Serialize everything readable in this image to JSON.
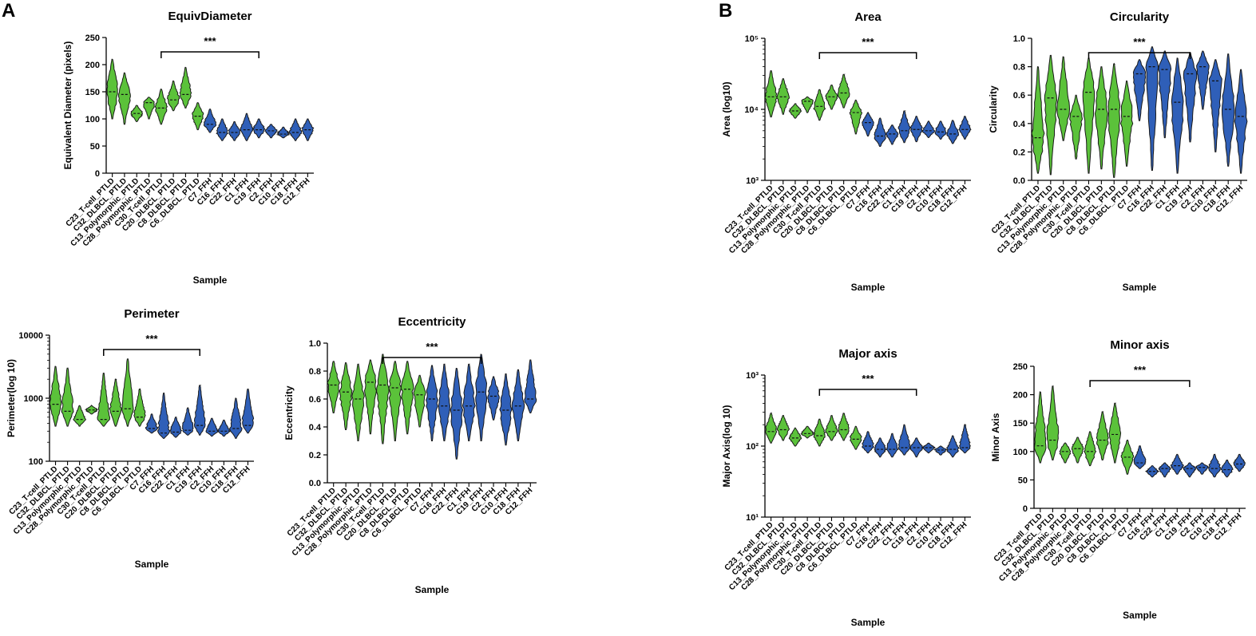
{
  "panels": {
    "a": "A",
    "b": "B"
  },
  "colors": {
    "green": "#5bc23a",
    "blue": "#2f5fb8",
    "outline": "#1a1a1a"
  },
  "samples": [
    "C23_T-cell_PTLD",
    "C32_DLBCL_PTLD",
    "C13_Polymorphic_PTLD",
    "C28_Polymorphic_PTLD",
    "C30_T-cell_PTLD",
    "C20_DLBCL_PTLD",
    "C8_DLBCL_PTLD",
    "C6_DLBCL_PTLD",
    "C7_FFH",
    "C16_FFH",
    "C22_FFH",
    "C1_FFH",
    "C19_FFH",
    "C2_FFH",
    "C10_FFH",
    "C18_FFH",
    "C12_FFH"
  ],
  "chart_data": [
    {
      "id": "equiv",
      "type": "violin",
      "title": "EquivDiameter",
      "ylabel": "Equivalent Diameter (pixels)",
      "xlabel": "Sample",
      "scale": "linear",
      "ylim": [
        0,
        250
      ],
      "yticks": [
        0,
        50,
        100,
        150,
        200,
        250
      ],
      "ytick_labels": [
        "0",
        "50",
        "100",
        "150",
        "200",
        "250"
      ],
      "significance": "***",
      "sig_span": [
        4,
        12
      ],
      "series": [
        {
          "group": "PTLD",
          "color": "green",
          "lo": [
            100,
            90,
            95,
            100,
            90,
            115,
            120,
            80
          ],
          "hi": [
            210,
            185,
            125,
            140,
            155,
            170,
            195,
            130
          ],
          "mid": [
            150,
            145,
            110,
            130,
            120,
            135,
            145,
            105
          ]
        },
        {
          "group": "FFH",
          "color": "blue",
          "lo": [
            75,
            60,
            60,
            60,
            65,
            65,
            65,
            60,
            60
          ],
          "hi": [
            118,
            100,
            95,
            110,
            100,
            90,
            85,
            100,
            100
          ],
          "mid": [
            90,
            75,
            75,
            80,
            80,
            78,
            72,
            75,
            80
          ]
        }
      ]
    },
    {
      "id": "perimeter",
      "type": "violin",
      "title": "Perimeter",
      "ylabel": "Perimeter(log 10)",
      "xlabel": "Sample",
      "scale": "log",
      "ylim": [
        100,
        10000
      ],
      "yticks": [
        100,
        1000,
        10000
      ],
      "ytick_labels": [
        "100",
        "1000",
        "10000"
      ],
      "significance": "***",
      "sig_span": [
        4,
        12
      ],
      "series": [
        {
          "group": "PTLD",
          "color": "green",
          "lo": [
            360,
            360,
            360,
            560,
            360,
            360,
            360,
            360
          ],
          "hi": [
            3200,
            3000,
            760,
            760,
            2500,
            2000,
            4200,
            1400
          ],
          "mid": [
            800,
            620,
            460,
            650,
            460,
            620,
            680,
            500
          ]
        },
        {
          "group": "FFH",
          "color": "blue",
          "lo": [
            280,
            230,
            240,
            260,
            260,
            250,
            250,
            230,
            280
          ],
          "hi": [
            560,
            1200,
            500,
            700,
            1600,
            480,
            450,
            1000,
            1400
          ],
          "mid": [
            330,
            280,
            290,
            310,
            370,
            300,
            300,
            330,
            370
          ]
        }
      ]
    },
    {
      "id": "eccentricity",
      "type": "violin",
      "title": "Eccentricity",
      "ylabel": "Eccentricity",
      "xlabel": "Sample",
      "scale": "linear",
      "ylim": [
        0,
        1
      ],
      "yticks": [
        0,
        0.2,
        0.4,
        0.6,
        0.8,
        1
      ],
      "ytick_labels": [
        "0.0",
        "0.2",
        "0.4",
        "0.6",
        "0.8",
        "1.0"
      ],
      "significance": "***",
      "sig_span": [
        4,
        12
      ],
      "series": [
        {
          "group": "PTLD",
          "color": "green",
          "lo": [
            0.5,
            0.38,
            0.3,
            0.35,
            0.28,
            0.3,
            0.35,
            0.4
          ],
          "hi": [
            0.87,
            0.86,
            0.85,
            0.88,
            0.92,
            0.87,
            0.87,
            0.77
          ],
          "mid": [
            0.7,
            0.65,
            0.6,
            0.72,
            0.7,
            0.68,
            0.67,
            0.63
          ]
        },
        {
          "group": "FFH",
          "color": "blue",
          "lo": [
            0.3,
            0.3,
            0.17,
            0.3,
            0.3,
            0.45,
            0.27,
            0.3,
            0.5
          ],
          "hi": [
            0.84,
            0.85,
            0.82,
            0.85,
            0.92,
            0.76,
            0.78,
            0.81,
            0.88
          ],
          "mid": [
            0.6,
            0.55,
            0.52,
            0.55,
            0.65,
            0.62,
            0.52,
            0.55,
            0.6
          ]
        }
      ]
    },
    {
      "id": "area",
      "type": "violin",
      "title": "Area",
      "ylabel": "Area (log10)",
      "xlabel": "Sample",
      "scale": "log",
      "ylim": [
        1000,
        100000
      ],
      "yticks": [
        1000,
        10000,
        100000
      ],
      "ytick_labels": [
        "10³",
        "10⁴",
        "10⁵"
      ],
      "significance": "***",
      "sig_span": [
        4,
        12
      ],
      "series": [
        {
          "group": "PTLD",
          "color": "green",
          "lo": [
            7800,
            8500,
            7500,
            9000,
            7000,
            10000,
            10500,
            4500
          ],
          "hi": [
            35000,
            27000,
            12000,
            15000,
            19000,
            22000,
            31000,
            13500
          ],
          "mid": [
            15000,
            15000,
            9500,
            13000,
            11000,
            15000,
            17000,
            9000
          ]
        },
        {
          "group": "FFH",
          "color": "blue",
          "lo": [
            4200,
            3000,
            3200,
            3400,
            3500,
            4000,
            3800,
            3300,
            3800
          ],
          "hi": [
            9000,
            7500,
            6000,
            9500,
            8000,
            6800,
            6800,
            7000,
            8000
          ],
          "mid": [
            6500,
            4200,
            4500,
            5000,
            5200,
            5000,
            4800,
            4500,
            5200
          ]
        }
      ]
    },
    {
      "id": "circularity",
      "type": "violin",
      "title": "Circularity",
      "ylabel": "Circularity",
      "xlabel": "Sample",
      "scale": "linear",
      "ylim": [
        0,
        1
      ],
      "yticks": [
        0,
        0.2,
        0.4,
        0.6,
        0.8,
        1
      ],
      "ytick_labels": [
        "0.0",
        "0.2",
        "0.4",
        "0.6",
        "0.8",
        "1.0"
      ],
      "significance": "***",
      "sig_span": [
        4,
        12
      ],
      "series": [
        {
          "group": "PTLD",
          "color": "green",
          "lo": [
            0.05,
            0.04,
            0.28,
            0.15,
            0.05,
            0.08,
            0.02,
            0.1
          ],
          "hi": [
            0.8,
            0.88,
            0.87,
            0.6,
            0.86,
            0.8,
            0.82,
            0.7
          ],
          "mid": [
            0.3,
            0.58,
            0.5,
            0.45,
            0.62,
            0.5,
            0.5,
            0.45
          ]
        },
        {
          "group": "FFH",
          "color": "blue",
          "lo": [
            0.42,
            0.07,
            0.3,
            0.05,
            0.27,
            0.5,
            0.2,
            0.1,
            0.05
          ],
          "hi": [
            0.85,
            0.94,
            0.91,
            0.86,
            0.9,
            0.91,
            0.85,
            0.89,
            0.78
          ],
          "mid": [
            0.75,
            0.8,
            0.78,
            0.55,
            0.75,
            0.8,
            0.7,
            0.5,
            0.45
          ]
        }
      ]
    },
    {
      "id": "major",
      "type": "violin",
      "title": "Major axis",
      "ylabel": "Major Axis(log 10)",
      "xlabel": "Sample",
      "scale": "log",
      "ylim": [
        10,
        1000
      ],
      "yticks": [
        10,
        100,
        1000
      ],
      "ytick_labels": [
        "10¹",
        "10²",
        "10³"
      ],
      "significance": "***",
      "sig_span": [
        4,
        12
      ],
      "series": [
        {
          "group": "PTLD",
          "color": "green",
          "lo": [
            110,
            120,
            100,
            130,
            100,
            120,
            120,
            90
          ],
          "hi": [
            290,
            270,
            180,
            190,
            240,
            270,
            290,
            190
          ],
          "mid": [
            160,
            170,
            130,
            150,
            140,
            160,
            170,
            125
          ]
        },
        {
          "group": "FFH",
          "color": "blue",
          "lo": [
            80,
            70,
            70,
            75,
            70,
            80,
            75,
            70,
            80
          ],
          "hi": [
            160,
            130,
            150,
            200,
            130,
            110,
            100,
            140,
            200
          ],
          "mid": [
            100,
            90,
            90,
            95,
            95,
            95,
            88,
            90,
            95
          ]
        }
      ]
    },
    {
      "id": "minor",
      "type": "violin",
      "title": "Minor axis",
      "ylabel": "Minor Axis",
      "xlabel": "Sample",
      "scale": "linear",
      "ylim": [
        0,
        250
      ],
      "yticks": [
        0,
        50,
        100,
        150,
        200,
        250
      ],
      "ytick_labels": [
        "0",
        "50",
        "100",
        "150",
        "200",
        "250"
      ],
      "significance": "***",
      "sig_span": [
        4,
        12
      ],
      "series": [
        {
          "group": "PTLD",
          "color": "green",
          "lo": [
            80,
            85,
            80,
            80,
            75,
            85,
            80,
            60
          ],
          "hi": [
            205,
            215,
            115,
            125,
            135,
            170,
            185,
            120
          ],
          "mid": [
            110,
            120,
            100,
            105,
            100,
            120,
            130,
            90
          ]
        },
        {
          "group": "FFH",
          "color": "blue",
          "lo": [
            70,
            55,
            55,
            60,
            55,
            60,
            55,
            55,
            65
          ],
          "hi": [
            110,
            75,
            80,
            95,
            80,
            80,
            95,
            85,
            95
          ],
          "mid": [
            80,
            65,
            70,
            75,
            70,
            72,
            70,
            68,
            78
          ]
        }
      ]
    }
  ]
}
